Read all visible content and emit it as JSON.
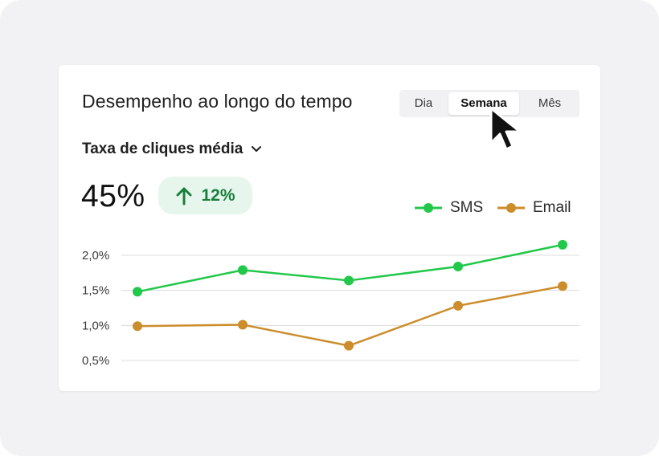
{
  "card": {
    "title": "Desempenho ao longo do tempo"
  },
  "period_tabs": [
    {
      "label": "Dia",
      "active": false
    },
    {
      "label": "Semana",
      "active": true
    },
    {
      "label": "Mês",
      "active": false
    }
  ],
  "metric": {
    "selector_label": "Taxa de cliques média",
    "value": "45%",
    "delta": "12%",
    "delta_direction": "up",
    "delta_color": "#1a7f3c"
  },
  "icons": {
    "dropdown": "chevron-down-icon",
    "delta": "arrow-up-icon",
    "pointer": "mouse-cursor-icon"
  },
  "chart_data": {
    "type": "line",
    "x": [
      1,
      2,
      3,
      4,
      5
    ],
    "series": [
      {
        "name": "SMS",
        "color": "#22c84a",
        "values": [
          1.48,
          1.79,
          1.64,
          1.84,
          2.15
        ]
      },
      {
        "name": "Email",
        "color": "#cc8d2c",
        "values": [
          0.99,
          1.01,
          0.71,
          1.28,
          1.56
        ]
      }
    ],
    "y_ticks": [
      "2,0%",
      "1,5%",
      "1,0%",
      "0,5%"
    ],
    "y_tick_values": [
      2.0,
      1.5,
      1.0,
      0.5
    ],
    "ylim": [
      0.5,
      2.0
    ],
    "grid": true,
    "legend_position": "top-right"
  }
}
